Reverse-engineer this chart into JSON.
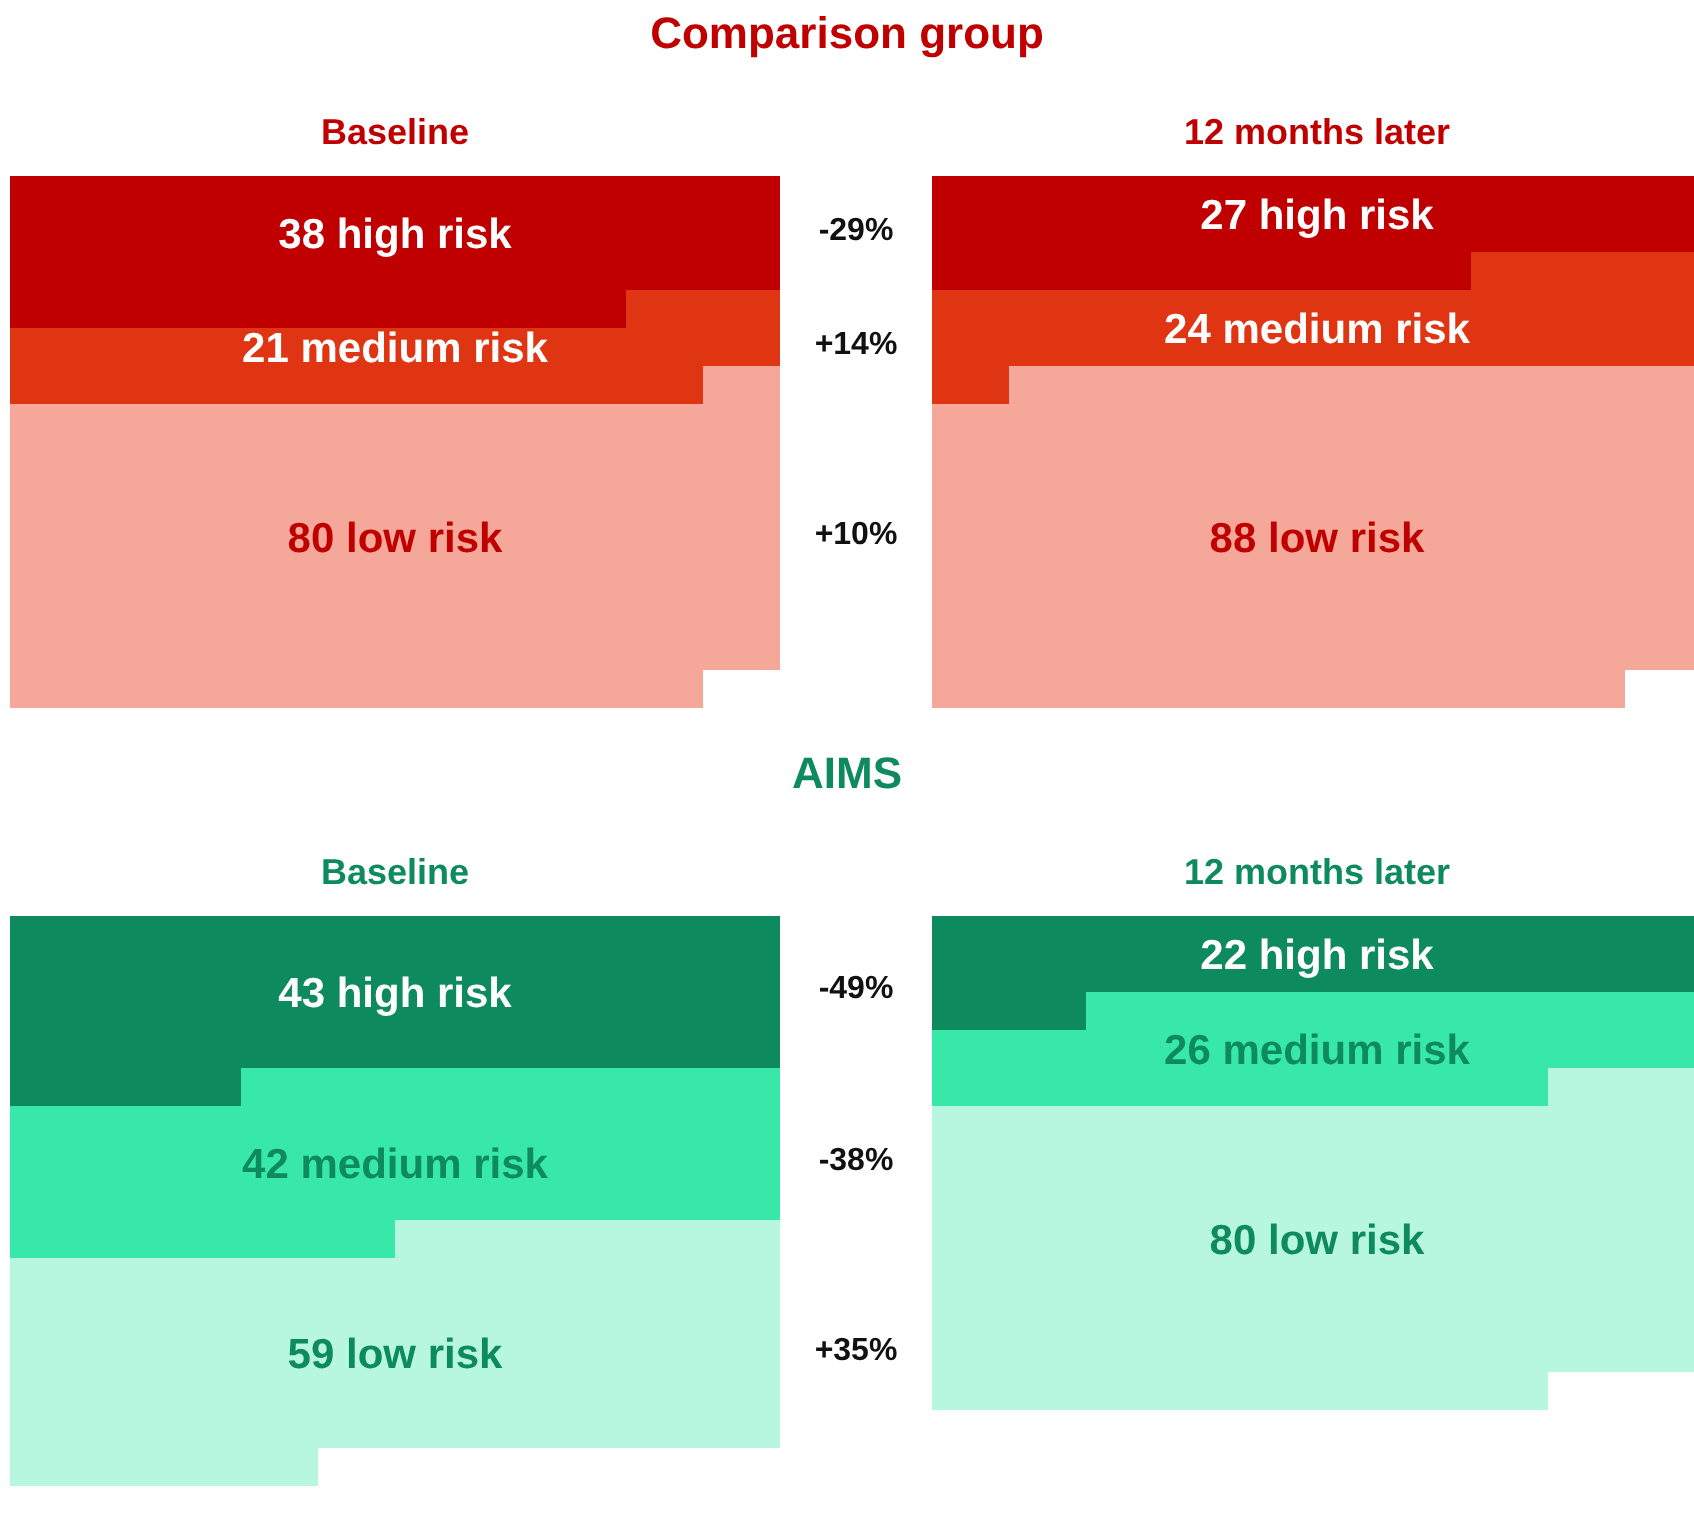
{
  "chart_data": [
    {
      "type": "other",
      "title": "Comparison group",
      "subtitle": "Baseline",
      "categories": [
        "high risk",
        "medium risk",
        "low risk"
      ],
      "values": [
        38,
        21,
        80
      ],
      "colors": [
        "#c00000",
        "#e03513",
        "#f5a899"
      ],
      "data_labels": true,
      "annotations": [
        "-29%",
        "+14%",
        "+10%"
      ]
    },
    {
      "type": "other",
      "subtitle": "12 months later",
      "categories": [
        "high risk",
        "medium risk",
        "low risk"
      ],
      "values": [
        27,
        24,
        88
      ],
      "colors": [
        "#c00000",
        "#e03513",
        "#f5a899"
      ],
      "data_labels": true
    },
    {
      "type": "other",
      "title": "AIMS",
      "subtitle": "Baseline",
      "categories": [
        "high risk",
        "medium risk",
        "low risk"
      ],
      "values": [
        43,
        42,
        59
      ],
      "colors": [
        "#0e8a5f",
        "#38e8a8",
        "#b8f7df"
      ],
      "data_labels": true,
      "annotations": [
        "-49%",
        "-38%",
        "+35%"
      ]
    },
    {
      "type": "other",
      "subtitle": "12 months later",
      "categories": [
        "high risk",
        "medium risk",
        "low risk"
      ],
      "values": [
        22,
        26,
        80
      ],
      "colors": [
        "#0e8a5f",
        "#38e8a8",
        "#b8f7df"
      ],
      "data_labels": true
    }
  ]
}
